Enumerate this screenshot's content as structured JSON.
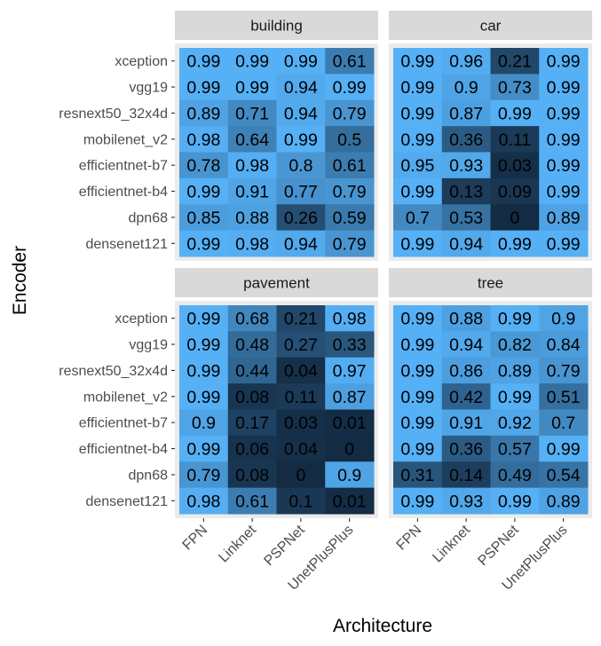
{
  "chart_data": {
    "type": "heatmap",
    "xlabel": "Architecture",
    "ylabel": "Encoder",
    "architectures": [
      "FPN",
      "Linknet",
      "PSPNet",
      "UnetPlusPlus"
    ],
    "encoders": [
      "xception",
      "vgg19",
      "resnext50_32x4d",
      "mobilenet_v2",
      "efficientnet-b7",
      "efficientnet-b4",
      "dpn68",
      "densenet121"
    ],
    "color_scale": {
      "low": "#132B43",
      "high": "#56B1F7",
      "limits": [
        0,
        1
      ]
    },
    "panels": [
      {
        "name": "building",
        "values": [
          [
            0.99,
            0.99,
            0.99,
            0.61
          ],
          [
            0.99,
            0.99,
            0.94,
            0.99
          ],
          [
            0.89,
            0.71,
            0.94,
            0.79
          ],
          [
            0.98,
            0.64,
            0.99,
            0.5
          ],
          [
            0.78,
            0.98,
            0.8,
            0.61
          ],
          [
            0.99,
            0.91,
            0.77,
            0.79
          ],
          [
            0.85,
            0.88,
            0.26,
            0.59
          ],
          [
            0.99,
            0.98,
            0.94,
            0.79
          ]
        ]
      },
      {
        "name": "car",
        "values": [
          [
            0.99,
            0.96,
            0.21,
            0.99
          ],
          [
            0.99,
            0.9,
            0.73,
            0.99
          ],
          [
            0.99,
            0.87,
            0.99,
            0.99
          ],
          [
            0.99,
            0.36,
            0.11,
            0.99
          ],
          [
            0.95,
            0.93,
            0.03,
            0.99
          ],
          [
            0.99,
            0.13,
            0.09,
            0.99
          ],
          [
            0.7,
            0.53,
            0,
            0.89
          ],
          [
            0.99,
            0.94,
            0.99,
            0.99
          ]
        ]
      },
      {
        "name": "pavement",
        "values": [
          [
            0.99,
            0.68,
            0.21,
            0.98
          ],
          [
            0.99,
            0.48,
            0.27,
            0.33
          ],
          [
            0.99,
            0.44,
            0.04,
            0.97
          ],
          [
            0.99,
            0.08,
            0.11,
            0.87
          ],
          [
            0.9,
            0.17,
            0.03,
            0.01
          ],
          [
            0.99,
            0.06,
            0.04,
            0
          ],
          [
            0.79,
            0.08,
            0,
            0.9
          ],
          [
            0.98,
            0.61,
            0.1,
            0.01
          ]
        ]
      },
      {
        "name": "tree",
        "values": [
          [
            0.99,
            0.88,
            0.99,
            0.9
          ],
          [
            0.99,
            0.94,
            0.82,
            0.84
          ],
          [
            0.99,
            0.86,
            0.89,
            0.79
          ],
          [
            0.99,
            0.42,
            0.99,
            0.51
          ],
          [
            0.99,
            0.91,
            0.92,
            0.7
          ],
          [
            0.99,
            0.36,
            0.57,
            0.99
          ],
          [
            0.31,
            0.14,
            0.49,
            0.54
          ],
          [
            0.99,
            0.93,
            0.99,
            0.89
          ]
        ]
      }
    ],
    "panel_background": "#ebebeb",
    "strip_background": "#d9d9d9"
  }
}
